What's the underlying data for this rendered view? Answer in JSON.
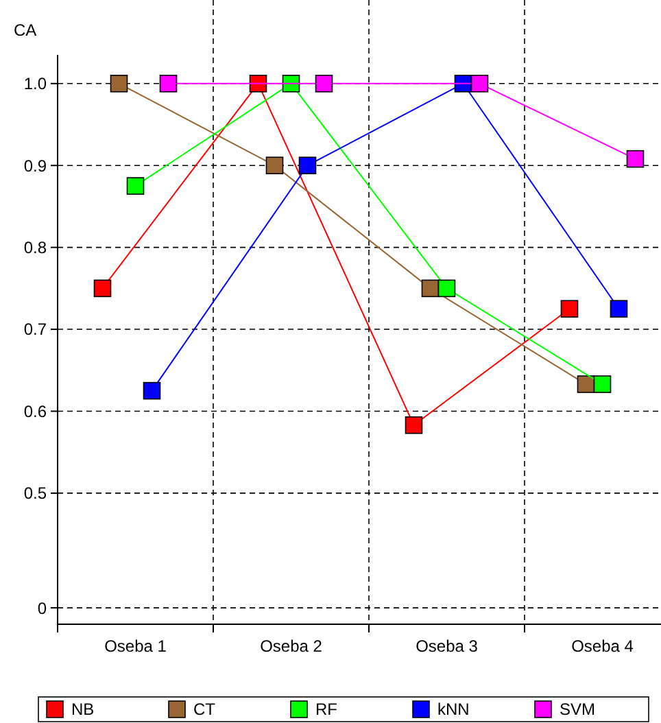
{
  "chart_data": {
    "type": "line",
    "ylabel": "CA",
    "categories": [
      "Oseba 1",
      "Oseba 2",
      "Oseba 3",
      "Oseba 4"
    ],
    "series": [
      {
        "name": "NB",
        "color": "#ff0000",
        "values": [
          0.75,
          1.0,
          0.583,
          0.725
        ]
      },
      {
        "name": "CT",
        "color": "#996633",
        "values": [
          1.0,
          0.9,
          0.75,
          0.633
        ]
      },
      {
        "name": "RF",
        "color": "#00ff00",
        "values": [
          0.875,
          1.0,
          0.75,
          0.633
        ]
      },
      {
        "name": "kNN",
        "color": "#0000ff",
        "values": [
          0.625,
          0.9,
          1.0,
          0.725
        ]
      },
      {
        "name": "SVM",
        "color": "#ff00ff",
        "values": [
          1.0,
          1.0,
          1.0,
          0.908
        ]
      }
    ],
    "ylim": [
      0.34,
      1.035
    ],
    "yticks": [
      {
        "value": 0.36,
        "label": "0"
      },
      0.5,
      0.6,
      0.7,
      0.8,
      0.9,
      {
        "value": 1.0,
        "label": "1.0"
      }
    ],
    "grid": true,
    "legend": "bottom",
    "marker": "square",
    "line_style": "solid"
  }
}
